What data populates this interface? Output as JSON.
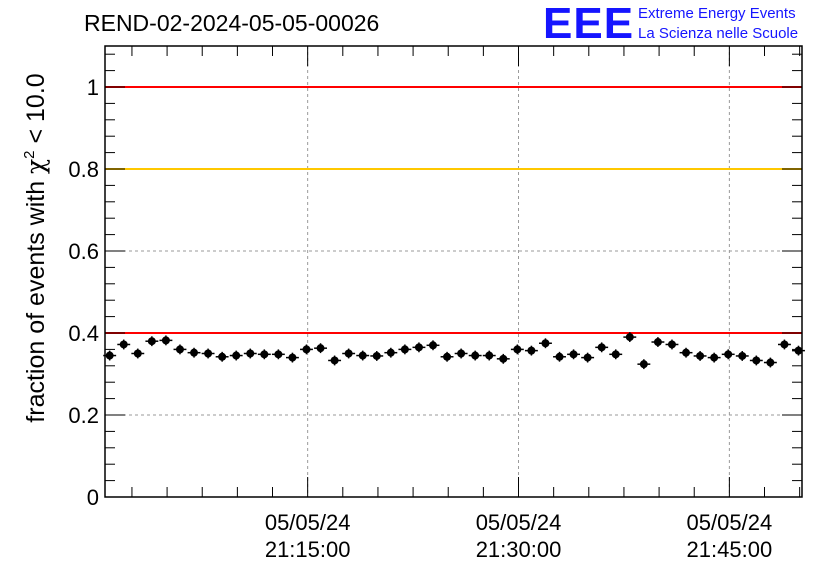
{
  "header": {
    "run_title": "REND-02-2024-05-05-00026",
    "logo_mark": "EEE",
    "logo_line1": "Extreme Energy Events",
    "logo_line2": "La Scienza nelle Scuole"
  },
  "colors": {
    "threshold_red": "#ff0000",
    "threshold_yellow": "#ffc800",
    "marker": "#000000",
    "logo_blue": "#1515ff"
  },
  "chart_data": {
    "type": "scatter",
    "title": "REND-02-2024-05-05-00026",
    "xlabel": "",
    "ylabel": "fraction of events with χ² < 10.0",
    "ylabel_parts": {
      "prefix": "fraction of events with ",
      "chi": "χ",
      "sup": "2",
      "suffix": " < 10.0"
    },
    "x_unit": "minutes after 2024-05-05 21:00:00",
    "xlim": [
      0,
      59.5
    ],
    "ylim": [
      0,
      1.1
    ],
    "grid": true,
    "y_ticks": [
      0,
      0.2,
      0.4,
      0.6,
      0.8,
      1
    ],
    "y_tick_labels": [
      "0",
      "0.2",
      "0.4",
      "0.6",
      "0.8",
      "1"
    ],
    "x_ticks": [
      17.3,
      35.3,
      53.3
    ],
    "x_tick_labels": [
      [
        "05/05/24",
        "21:15:00"
      ],
      [
        "05/05/24",
        "21:30:00"
      ],
      [
        "05/05/24",
        "21:45:00"
      ]
    ],
    "reference_lines": [
      {
        "y": 1.0,
        "color": "red"
      },
      {
        "y": 0.8,
        "color": "yellow"
      },
      {
        "y": 0.4,
        "color": "red"
      }
    ],
    "series": [
      {
        "x": [
          0.4,
          1.6,
          2.8,
          4.0,
          5.2,
          6.4,
          7.6,
          8.8,
          10.0,
          11.2,
          12.4,
          13.6,
          14.8,
          16.0,
          17.2,
          18.4,
          19.6,
          20.8,
          22.0,
          23.2,
          24.4,
          25.6,
          26.8,
          28.0,
          29.2,
          30.4,
          31.6,
          32.8,
          34.0,
          35.2,
          36.4,
          37.6,
          38.8,
          40.0,
          41.2,
          42.4,
          43.6,
          44.8,
          46.0,
          47.2,
          48.4,
          49.6,
          50.8,
          52.0,
          53.2,
          54.4,
          55.6,
          56.8,
          58.0,
          59.2
        ],
        "y": [
          0.345,
          0.372,
          0.35,
          0.38,
          0.382,
          0.36,
          0.352,
          0.35,
          0.342,
          0.345,
          0.35,
          0.348,
          0.348,
          0.34,
          0.36,
          0.363,
          0.333,
          0.35,
          0.345,
          0.344,
          0.352,
          0.36,
          0.365,
          0.37,
          0.342,
          0.35,
          0.345,
          0.345,
          0.337,
          0.36,
          0.357,
          0.375,
          0.342,
          0.348,
          0.34,
          0.365,
          0.348,
          0.39,
          0.324,
          0.378,
          0.372,
          0.352,
          0.344,
          0.34,
          0.348,
          0.344,
          0.333,
          0.328,
          0.372,
          0.357
        ],
        "y_err": 0.012,
        "x_err": 0.55
      }
    ]
  }
}
